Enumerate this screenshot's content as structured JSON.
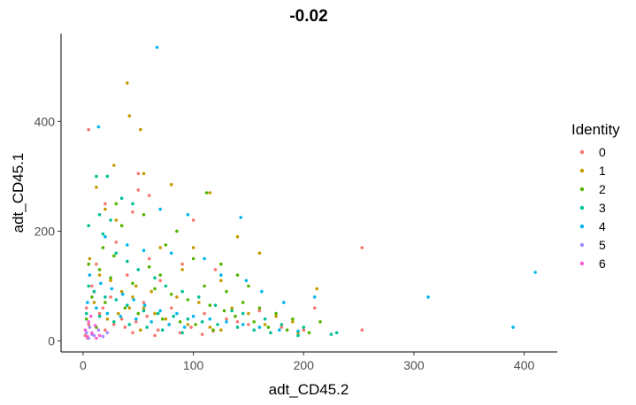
{
  "chart_data": {
    "type": "scatter",
    "title": "-0.02",
    "xlabel": "adt_CD45.2",
    "ylabel": "adt_CD45.1",
    "xlim": [
      -20,
      430
    ],
    "ylim": [
      -20,
      560
    ],
    "xticks": [
      0,
      100,
      200,
      300,
      400
    ],
    "xtick_labels": [
      "0",
      "100",
      "200",
      "300",
      "400"
    ],
    "yticks": [
      0,
      200,
      400
    ],
    "ytick_labels": [
      "0",
      "200",
      "400"
    ],
    "grid": false,
    "legend": {
      "title": "Identity",
      "placement": "right",
      "entries": [
        "0",
        "1",
        "2",
        "3",
        "4",
        "5",
        "6"
      ]
    },
    "series": [
      {
        "name": "0",
        "color": "#F8766D",
        "points": [
          [
            5,
            385
          ],
          [
            50,
            305
          ],
          [
            50,
            275
          ],
          [
            60,
            265
          ],
          [
            20,
            250
          ],
          [
            45,
            235
          ],
          [
            253,
            170
          ],
          [
            100,
            220
          ],
          [
            30,
            180
          ],
          [
            60,
            150
          ],
          [
            90,
            140
          ],
          [
            120,
            130
          ],
          [
            40,
            120
          ],
          [
            70,
            110
          ],
          [
            10,
            90
          ],
          [
            25,
            80
          ],
          [
            55,
            70
          ],
          [
            80,
            60
          ],
          [
            110,
            50
          ],
          [
            130,
            40
          ],
          [
            150,
            30
          ],
          [
            180,
            25
          ],
          [
            200,
            20
          ],
          [
            253,
            20
          ],
          [
            15,
            50
          ],
          [
            35,
            40
          ],
          [
            5,
            30
          ],
          [
            20,
            20
          ],
          [
            45,
            15
          ],
          [
            65,
            10
          ],
          [
            3,
            60
          ],
          [
            8,
            100
          ],
          [
            12,
            140
          ],
          [
            18,
            60
          ],
          [
            28,
            30
          ],
          [
            38,
            25
          ],
          [
            48,
            35
          ],
          [
            58,
            45
          ],
          [
            68,
            20
          ],
          [
            78,
            30
          ],
          [
            88,
            15
          ],
          [
            98,
            25
          ],
          [
            108,
            12
          ],
          [
            118,
            18
          ],
          [
            140,
            35
          ],
          [
            160,
            55
          ],
          [
            170,
            15
          ],
          [
            210,
            60
          ],
          [
            2,
            10
          ],
          [
            4,
            5
          ]
        ]
      },
      {
        "name": "1",
        "color": "#C49A00",
        "points": [
          [
            40,
            470
          ],
          [
            42,
            410
          ],
          [
            52,
            385
          ],
          [
            55,
            305
          ],
          [
            28,
            320
          ],
          [
            80,
            285
          ],
          [
            12,
            280
          ],
          [
            115,
            270
          ],
          [
            20,
            240
          ],
          [
            140,
            190
          ],
          [
            160,
            160
          ],
          [
            30,
            220
          ],
          [
            70,
            170
          ],
          [
            90,
            130
          ],
          [
            100,
            170
          ],
          [
            125,
            110
          ],
          [
            48,
            100
          ],
          [
            62,
            90
          ],
          [
            85,
            80
          ],
          [
            105,
            70
          ],
          [
            135,
            60
          ],
          [
            150,
            50
          ],
          [
            175,
            45
          ],
          [
            190,
            35
          ],
          [
            212,
            95
          ],
          [
            15,
            120
          ],
          [
            25,
            110
          ],
          [
            35,
            90
          ],
          [
            45,
            80
          ],
          [
            55,
            60
          ],
          [
            65,
            50
          ],
          [
            75,
            40
          ],
          [
            95,
            30
          ],
          [
            115,
            25
          ],
          [
            125,
            20
          ],
          [
            165,
            30
          ],
          [
            195,
            15
          ],
          [
            6,
            150
          ],
          [
            10,
            70
          ],
          [
            22,
            40
          ],
          [
            32,
            50
          ],
          [
            42,
            60
          ],
          [
            52,
            20
          ]
        ]
      },
      {
        "name": "2",
        "color": "#53B400",
        "points": [
          [
            112,
            270
          ],
          [
            30,
            250
          ],
          [
            55,
            230
          ],
          [
            35,
            210
          ],
          [
            75,
            175
          ],
          [
            85,
            200
          ],
          [
            100,
            150
          ],
          [
            125,
            140
          ],
          [
            140,
            120
          ],
          [
            150,
            100
          ],
          [
            18,
            170
          ],
          [
            28,
            155
          ],
          [
            60,
            135
          ],
          [
            70,
            120
          ],
          [
            110,
            100
          ],
          [
            130,
            90
          ],
          [
            145,
            70
          ],
          [
            160,
            60
          ],
          [
            175,
            50
          ],
          [
            190,
            40
          ],
          [
            215,
            35
          ],
          [
            5,
            140
          ],
          [
            15,
            130
          ],
          [
            25,
            115
          ],
          [
            45,
            105
          ],
          [
            65,
            95
          ],
          [
            80,
            85
          ],
          [
            95,
            75
          ],
          [
            115,
            65
          ],
          [
            128,
            55
          ],
          [
            138,
            45
          ],
          [
            155,
            35
          ],
          [
            168,
            25
          ],
          [
            185,
            20
          ],
          [
            205,
            15
          ],
          [
            8,
            80
          ],
          [
            20,
            70
          ],
          [
            38,
            60
          ],
          [
            50,
            50
          ],
          [
            72,
            40
          ],
          [
            88,
            35
          ],
          [
            102,
            30
          ],
          [
            118,
            20
          ],
          [
            3,
            40
          ],
          [
            12,
            25
          ]
        ]
      },
      {
        "name": "3",
        "color": "#00C094",
        "points": [
          [
            12,
            300
          ],
          [
            22,
            300
          ],
          [
            35,
            260
          ],
          [
            45,
            250
          ],
          [
            15,
            230
          ],
          [
            25,
            220
          ],
          [
            5,
            210
          ],
          [
            18,
            195
          ],
          [
            30,
            160
          ],
          [
            40,
            145
          ],
          [
            50,
            130
          ],
          [
            65,
            115
          ],
          [
            75,
            100
          ],
          [
            90,
            90
          ],
          [
            105,
            80
          ],
          [
            120,
            65
          ],
          [
            135,
            55
          ],
          [
            145,
            50
          ],
          [
            165,
            40
          ],
          [
            180,
            30
          ],
          [
            200,
            25
          ],
          [
            230,
            15
          ],
          [
            5,
            100
          ],
          [
            10,
            90
          ],
          [
            20,
            80
          ],
          [
            30,
            75
          ],
          [
            40,
            65
          ],
          [
            55,
            55
          ],
          [
            68,
            50
          ],
          [
            82,
            45
          ],
          [
            95,
            40
          ],
          [
            108,
            35
          ],
          [
            122,
            30
          ],
          [
            140,
            25
          ],
          [
            155,
            20
          ],
          [
            170,
            15
          ],
          [
            195,
            10
          ],
          [
            225,
            12
          ],
          [
            3,
            50
          ],
          [
            15,
            45
          ],
          [
            28,
            35
          ],
          [
            42,
            30
          ],
          [
            58,
            25
          ],
          [
            72,
            20
          ],
          [
            90,
            15
          ]
        ]
      },
      {
        "name": "4",
        "color": "#00B6EB",
        "points": [
          [
            67,
            535
          ],
          [
            14,
            390
          ],
          [
            410,
            125
          ],
          [
            313,
            80
          ],
          [
            390,
            25
          ],
          [
            143,
            225
          ],
          [
            70,
            240
          ],
          [
            95,
            230
          ],
          [
            20,
            190
          ],
          [
            40,
            175
          ],
          [
            55,
            165
          ],
          [
            80,
            160
          ],
          [
            110,
            150
          ],
          [
            125,
            120
          ],
          [
            148,
            110
          ],
          [
            162,
            90
          ],
          [
            182,
            70
          ],
          [
            210,
            80
          ],
          [
            6,
            120
          ],
          [
            16,
            105
          ],
          [
            26,
            95
          ],
          [
            36,
            85
          ],
          [
            46,
            75
          ],
          [
            56,
            65
          ],
          [
            70,
            55
          ],
          [
            85,
            50
          ],
          [
            100,
            45
          ],
          [
            115,
            40
          ],
          [
            130,
            35
          ],
          [
            145,
            30
          ],
          [
            160,
            25
          ],
          [
            178,
            20
          ],
          [
            195,
            18
          ],
          [
            4,
            70
          ],
          [
            12,
            60
          ],
          [
            22,
            50
          ],
          [
            34,
            45
          ],
          [
            48,
            40
          ],
          [
            62,
            35
          ],
          [
            78,
            30
          ],
          [
            92,
            25
          ]
        ]
      },
      {
        "name": "5",
        "color": "#A58AFF",
        "points": [
          [
            3,
            15
          ],
          [
            6,
            25
          ],
          [
            10,
            10
          ],
          [
            14,
            20
          ],
          [
            18,
            8
          ],
          [
            22,
            15
          ],
          [
            5,
            5
          ],
          [
            8,
            12
          ]
        ]
      },
      {
        "name": "6",
        "color": "#FB61D7",
        "points": [
          [
            2,
            20
          ],
          [
            5,
            35
          ],
          [
            8,
            15
          ],
          [
            11,
            28
          ],
          [
            15,
            10
          ],
          [
            4,
            8
          ],
          [
            7,
            45
          ],
          [
            12,
            5
          ]
        ]
      }
    ]
  }
}
